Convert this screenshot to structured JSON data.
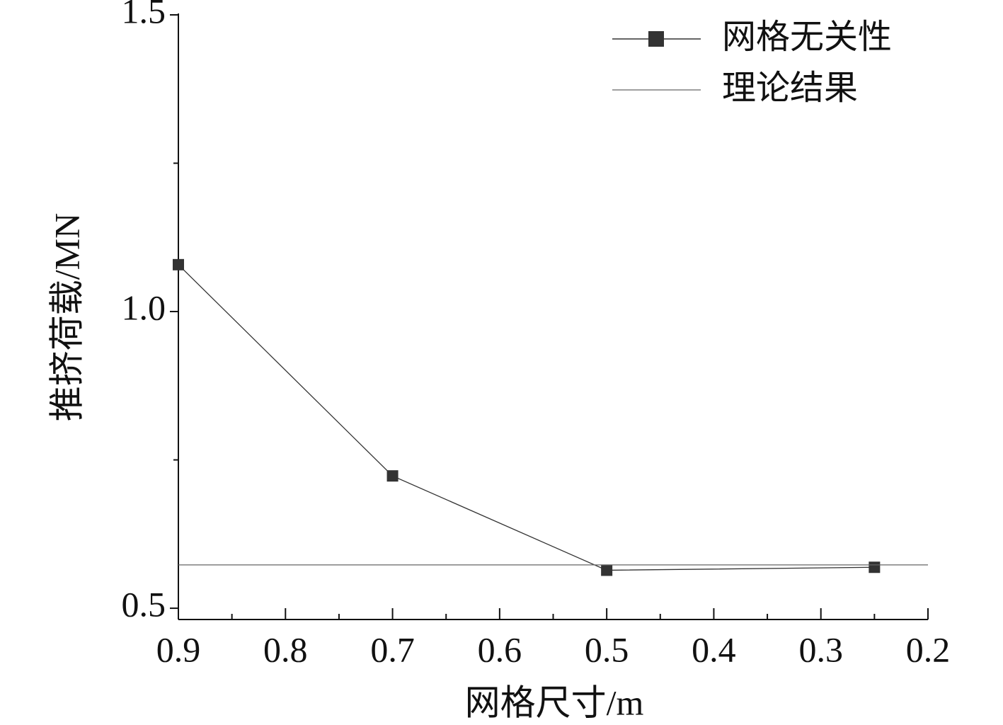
{
  "chart_data": {
    "type": "line",
    "x_label": "网格尺寸/m",
    "y_label": "推挤荷载/MN",
    "xlim": [
      0.9,
      0.2
    ],
    "ylim": [
      0.481,
      1.5
    ],
    "xticks": [
      0.9,
      0.8,
      0.7,
      0.6,
      0.5,
      0.4,
      0.3,
      0.2
    ],
    "xminorticks": [
      0.85,
      0.75,
      0.65,
      0.55,
      0.45,
      0.35,
      0.25
    ],
    "yticks": [
      0.5,
      {
        "value": 1.0,
        "label": "1.0"
      },
      1.5
    ],
    "yminorticks": [
      0.75,
      1.25
    ],
    "legend": "upper right",
    "series": [
      {
        "name": "网格无关性",
        "color": "#333333",
        "marker": "square",
        "x": [
          0.9,
          0.7,
          0.5,
          0.25
        ],
        "values": [
          1.079,
          0.723,
          0.564,
          0.569
        ]
      },
      {
        "name": "理论结果",
        "color": "#666666",
        "x": [
          0.9,
          0.2
        ],
        "values": [
          0.573,
          0.573
        ]
      }
    ]
  }
}
